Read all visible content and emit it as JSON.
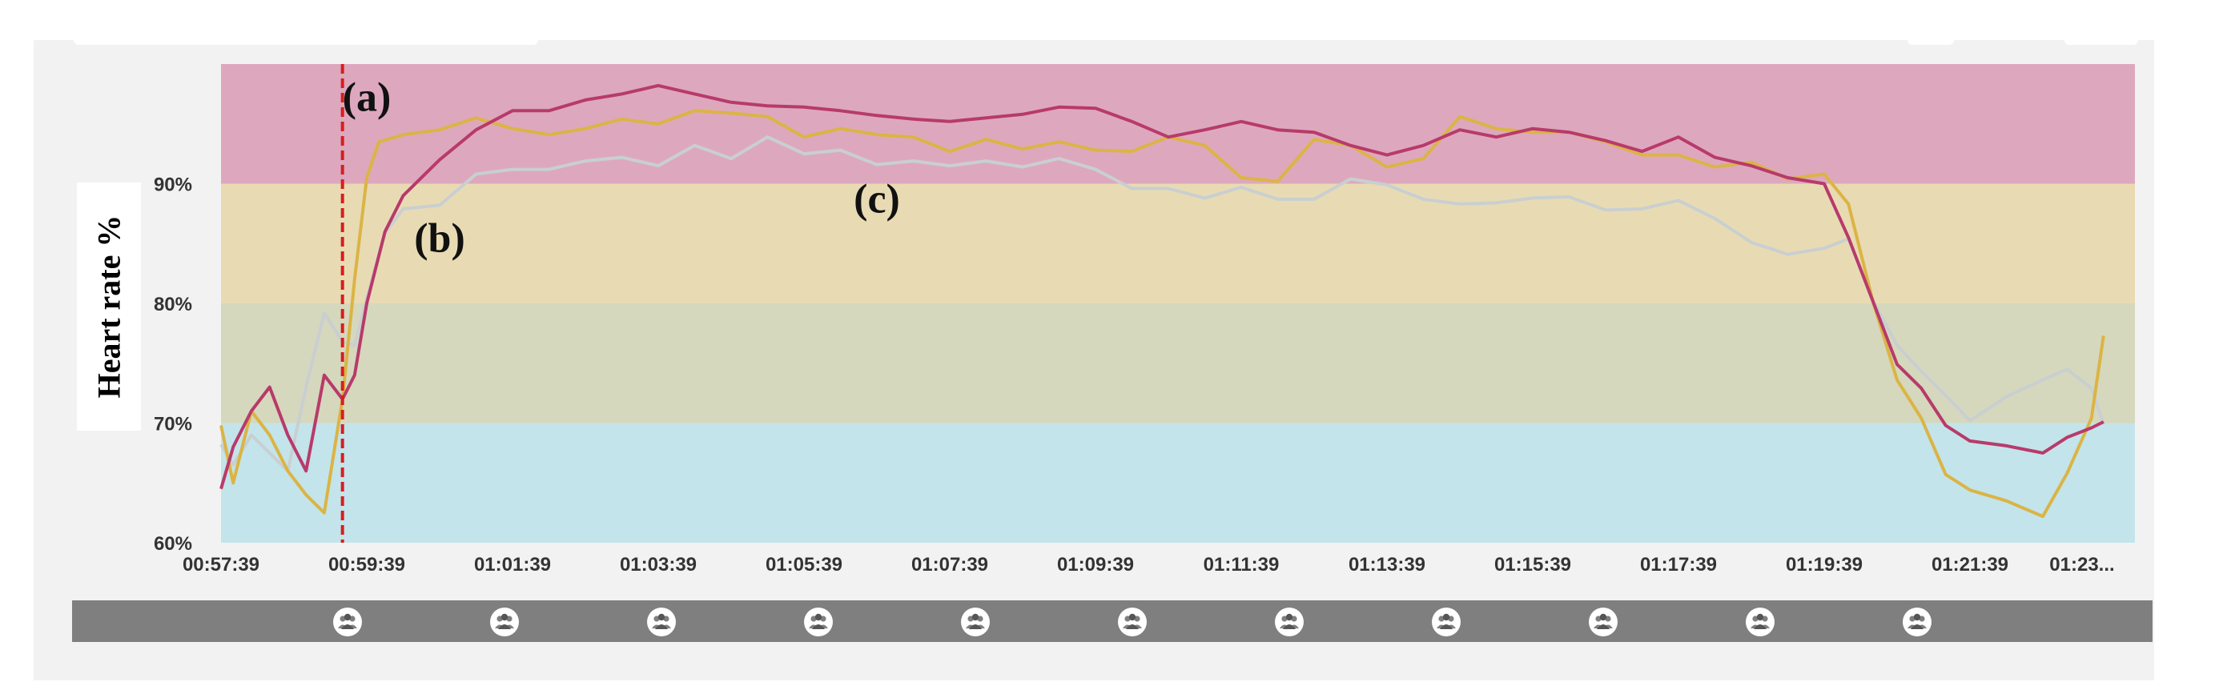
{
  "chart_data": {
    "type": "line",
    "ylabel": "Heart rate %",
    "xlabel": "",
    "title": "",
    "ylim": [
      60,
      100
    ],
    "x_ticks": [
      "00:57:39",
      "00:59:39",
      "01:01:39",
      "01:03:39",
      "01:05:39",
      "01:07:39",
      "01:09:39",
      "01:11:39",
      "01:13:39",
      "01:15:39",
      "01:17:39",
      "01:19:39",
      "01:21:39",
      "01:23..."
    ],
    "y_ticks": [
      "60%",
      "70%",
      "80%",
      "90%"
    ],
    "y_tick_values": [
      60,
      70,
      80,
      90
    ],
    "zones": [
      {
        "from": 60,
        "to": 70,
        "color": "#c3e4ea"
      },
      {
        "from": 70,
        "to": 80,
        "color": "#d5d8bc"
      },
      {
        "from": 80,
        "to": 90,
        "color": "#e8dbb3"
      },
      {
        "from": 90,
        "to": 100,
        "color": "#dda8bd"
      }
    ],
    "marker": {
      "x": "00:59:19",
      "color": "#d61e1e",
      "style": "dashed"
    },
    "annotations": [
      {
        "text": "(a)",
        "x": "00:59:39",
        "y": 96.1
      },
      {
        "text": "(b)",
        "x": "01:00:39",
        "y": 84.3
      },
      {
        "text": "(c)",
        "x": "01:06:39",
        "y": 87.6
      }
    ],
    "series": [
      {
        "color": "#b83a6b",
        "points": [
          [
            "00:57:39",
            64.5
          ],
          [
            "00:57:49",
            68
          ],
          [
            "00:58:04",
            71
          ],
          [
            "00:58:19",
            73
          ],
          [
            "00:58:34",
            69
          ],
          [
            "00:58:49",
            66
          ],
          [
            "00:59:04",
            74
          ],
          [
            "00:59:19",
            72
          ],
          [
            "00:59:29",
            74
          ],
          [
            "00:59:39",
            80
          ],
          [
            "00:59:54",
            86
          ],
          [
            "01:00:09",
            89
          ],
          [
            "01:00:39",
            92
          ],
          [
            "01:01:09",
            94.5
          ],
          [
            "01:01:39",
            96.1
          ],
          [
            "01:02:09",
            96.1
          ],
          [
            "01:02:39",
            97
          ],
          [
            "01:03:09",
            97.5
          ],
          [
            "01:03:39",
            98.2
          ],
          [
            "01:04:09",
            97.5
          ],
          [
            "01:04:39",
            96.8
          ],
          [
            "01:05:09",
            96.5
          ],
          [
            "01:05:39",
            96.4
          ],
          [
            "01:06:09",
            96.1
          ],
          [
            "01:06:39",
            95.7
          ],
          [
            "01:07:09",
            95.4
          ],
          [
            "01:07:39",
            95.2
          ],
          [
            "01:08:09",
            95.5
          ],
          [
            "01:08:39",
            95.8
          ],
          [
            "01:09:09",
            96.4
          ],
          [
            "01:09:39",
            96.3
          ],
          [
            "01:10:09",
            95.2
          ],
          [
            "01:10:39",
            93.9
          ],
          [
            "01:11:09",
            94.5
          ],
          [
            "01:11:39",
            95.2
          ],
          [
            "01:12:09",
            94.5
          ],
          [
            "01:12:39",
            94.3
          ],
          [
            "01:13:09",
            93.2
          ],
          [
            "01:13:39",
            92.4
          ],
          [
            "01:14:09",
            93.2
          ],
          [
            "01:14:39",
            94.5
          ],
          [
            "01:15:09",
            93.9
          ],
          [
            "01:15:39",
            94.6
          ],
          [
            "01:16:09",
            94.3
          ],
          [
            "01:16:39",
            93.6
          ],
          [
            "01:17:09",
            92.7
          ],
          [
            "01:17:39",
            93.9
          ],
          [
            "01:18:09",
            92.2
          ],
          [
            "01:18:39",
            91.5
          ],
          [
            "01:19:09",
            90.5
          ],
          [
            "01:19:39",
            90
          ],
          [
            "01:19:59",
            85.5
          ],
          [
            "01:20:19",
            80.2
          ],
          [
            "01:20:39",
            74.9
          ],
          [
            "01:20:59",
            72.9
          ],
          [
            "01:21:19",
            69.8
          ],
          [
            "01:21:39",
            68.5
          ],
          [
            "01:22:09",
            68.1
          ],
          [
            "01:22:39",
            67.5
          ],
          [
            "01:22:59",
            68.8
          ],
          [
            "01:23:19",
            69.6
          ],
          [
            "01:23:29",
            70.1
          ]
        ]
      },
      {
        "color": "#dbb445",
        "points": [
          [
            "00:57:39",
            69.8
          ],
          [
            "00:57:49",
            65
          ],
          [
            "00:58:04",
            71
          ],
          [
            "00:58:19",
            69
          ],
          [
            "00:58:34",
            66
          ],
          [
            "00:58:49",
            64
          ],
          [
            "00:59:04",
            62.5
          ],
          [
            "00:59:19",
            72
          ],
          [
            "00:59:29",
            82
          ],
          [
            "00:59:39",
            90.5
          ],
          [
            "00:59:49",
            93.5
          ],
          [
            "01:00:09",
            94.1
          ],
          [
            "01:00:39",
            94.5
          ],
          [
            "01:01:09",
            95.5
          ],
          [
            "01:01:39",
            94.6
          ],
          [
            "01:02:09",
            94.1
          ],
          [
            "01:02:39",
            94.6
          ],
          [
            "01:03:09",
            95.4
          ],
          [
            "01:03:39",
            95
          ],
          [
            "01:04:09",
            96.1
          ],
          [
            "01:04:39",
            95.9
          ],
          [
            "01:05:09",
            95.6
          ],
          [
            "01:05:39",
            93.9
          ],
          [
            "01:06:09",
            94.6
          ],
          [
            "01:06:39",
            94.1
          ],
          [
            "01:07:09",
            93.9
          ],
          [
            "01:07:39",
            92.7
          ],
          [
            "01:08:09",
            93.7
          ],
          [
            "01:08:39",
            92.9
          ],
          [
            "01:09:09",
            93.5
          ],
          [
            "01:09:39",
            92.8
          ],
          [
            "01:10:09",
            92.7
          ],
          [
            "01:10:39",
            93.9
          ],
          [
            "01:11:09",
            93.2
          ],
          [
            "01:11:39",
            90.5
          ],
          [
            "01:12:09",
            90.2
          ],
          [
            "01:12:39",
            93.7
          ],
          [
            "01:13:09",
            93.2
          ],
          [
            "01:13:39",
            91.4
          ],
          [
            "01:14:09",
            92.1
          ],
          [
            "01:14:39",
            95.6
          ],
          [
            "01:15:09",
            94.6
          ],
          [
            "01:15:39",
            94.3
          ],
          [
            "01:16:09",
            94.3
          ],
          [
            "01:16:39",
            93.5
          ],
          [
            "01:17:09",
            92.4
          ],
          [
            "01:17:39",
            92.4
          ],
          [
            "01:18:09",
            91.4
          ],
          [
            "01:18:39",
            91.8
          ],
          [
            "01:19:09",
            90.4
          ],
          [
            "01:19:39",
            90.8
          ],
          [
            "01:19:59",
            88.3
          ],
          [
            "01:20:19",
            80.2
          ],
          [
            "01:20:39",
            73.6
          ],
          [
            "01:20:59",
            70.4
          ],
          [
            "01:21:19",
            65.7
          ],
          [
            "01:21:39",
            64.4
          ],
          [
            "01:22:09",
            63.5
          ],
          [
            "01:22:39",
            62.2
          ],
          [
            "01:22:59",
            65.8
          ],
          [
            "01:23:19",
            70.4
          ],
          [
            "01:23:29",
            77.3
          ]
        ]
      },
      {
        "color": "#c9cfd1",
        "points": [
          [
            "00:57:39",
            68.2
          ],
          [
            "00:57:49",
            66.5
          ],
          [
            "00:58:04",
            69
          ],
          [
            "00:58:19",
            67.5
          ],
          [
            "00:58:34",
            66
          ],
          [
            "00:58:49",
            73
          ],
          [
            "00:59:04",
            79.2
          ],
          [
            "00:59:19",
            76.8
          ],
          [
            "00:59:29",
            76.5
          ],
          [
            "00:59:39",
            80.4
          ],
          [
            "00:59:54",
            85.9
          ],
          [
            "01:00:09",
            87.9
          ],
          [
            "01:00:39",
            88.2
          ],
          [
            "01:01:09",
            90.8
          ],
          [
            "01:01:39",
            91.2
          ],
          [
            "01:02:09",
            91.2
          ],
          [
            "01:02:39",
            91.9
          ],
          [
            "01:03:09",
            92.2
          ],
          [
            "01:03:39",
            91.5
          ],
          [
            "01:04:09",
            93.2
          ],
          [
            "01:04:39",
            92.1
          ],
          [
            "01:05:09",
            93.9
          ],
          [
            "01:05:39",
            92.5
          ],
          [
            "01:06:09",
            92.8
          ],
          [
            "01:06:39",
            91.6
          ],
          [
            "01:07:09",
            91.9
          ],
          [
            "01:07:39",
            91.5
          ],
          [
            "01:08:09",
            91.9
          ],
          [
            "01:08:39",
            91.4
          ],
          [
            "01:09:09",
            92.1
          ],
          [
            "01:09:39",
            91.2
          ],
          [
            "01:10:09",
            89.6
          ],
          [
            "01:10:39",
            89.6
          ],
          [
            "01:11:09",
            88.8
          ],
          [
            "01:11:39",
            89.7
          ],
          [
            "01:12:09",
            88.7
          ],
          [
            "01:12:39",
            88.7
          ],
          [
            "01:13:09",
            90.4
          ],
          [
            "01:13:39",
            89.9
          ],
          [
            "01:14:09",
            88.7
          ],
          [
            "01:14:39",
            88.3
          ],
          [
            "01:15:09",
            88.4
          ],
          [
            "01:15:39",
            88.8
          ],
          [
            "01:16:09",
            88.9
          ],
          [
            "01:16:39",
            87.8
          ],
          [
            "01:17:09",
            87.9
          ],
          [
            "01:17:39",
            88.6
          ],
          [
            "01:18:09",
            87.1
          ],
          [
            "01:18:39",
            85.1
          ],
          [
            "01:19:09",
            84.1
          ],
          [
            "01:19:39",
            84.6
          ],
          [
            "01:19:59",
            85.4
          ],
          [
            "01:20:19",
            80.2
          ],
          [
            "01:20:39",
            76.5
          ],
          [
            "01:20:59",
            74.3
          ],
          [
            "01:21:19",
            72.3
          ],
          [
            "01:21:39",
            70.2
          ],
          [
            "01:22:09",
            72.2
          ],
          [
            "01:22:39",
            73.6
          ],
          [
            "01:22:59",
            74.5
          ],
          [
            "01:23:19",
            72.9
          ],
          [
            "01:23:29",
            69.9
          ]
        ]
      }
    ]
  },
  "page": {
    "event_icon_count": 11,
    "event_icon_name": "people-icon"
  }
}
